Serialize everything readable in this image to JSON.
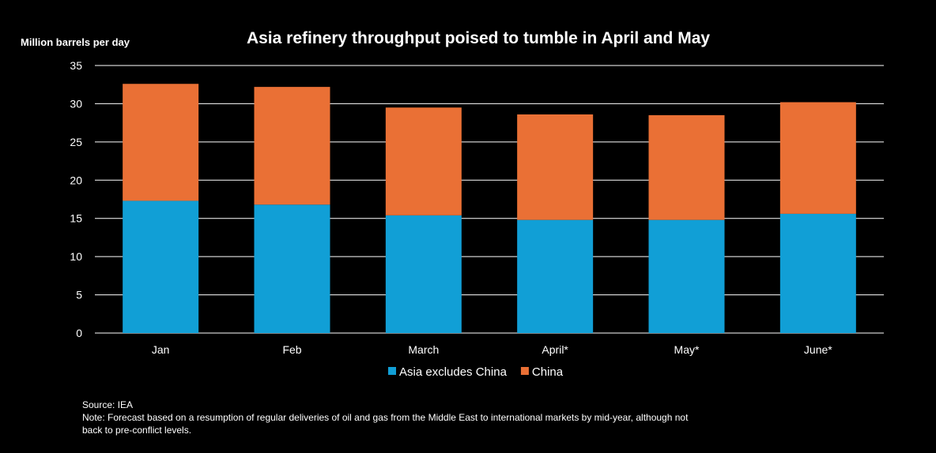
{
  "chart_data": {
    "type": "bar",
    "stacked": true,
    "title": "Asia refinery throughput poised to tumble in April and May",
    "ylabel": "Million barrels per day",
    "xlabel": "",
    "ylim": [
      0,
      35
    ],
    "yticks": [
      0,
      5,
      10,
      15,
      20,
      25,
      30,
      35
    ],
    "grid": true,
    "legend_position": "bottom",
    "categories": [
      "Jan",
      "Feb",
      "March",
      "April*",
      "May*",
      "June*"
    ],
    "series": [
      {
        "name": "Asia excludes China",
        "color": "#119fd6",
        "values": [
          17.3,
          16.8,
          15.4,
          14.8,
          14.8,
          15.6
        ]
      },
      {
        "name": "China",
        "color": "#ea7035",
        "values": [
          15.3,
          15.4,
          14.1,
          13.8,
          13.7,
          14.6
        ]
      }
    ]
  },
  "footer": {
    "source": "Source: IEA",
    "note_line1": "Note:  Forecast based on a resumption of regular deliveries of oil and gas from the Middle East to international markets by mid-year, although not",
    "note_line2": "back to pre-conflict levels."
  }
}
